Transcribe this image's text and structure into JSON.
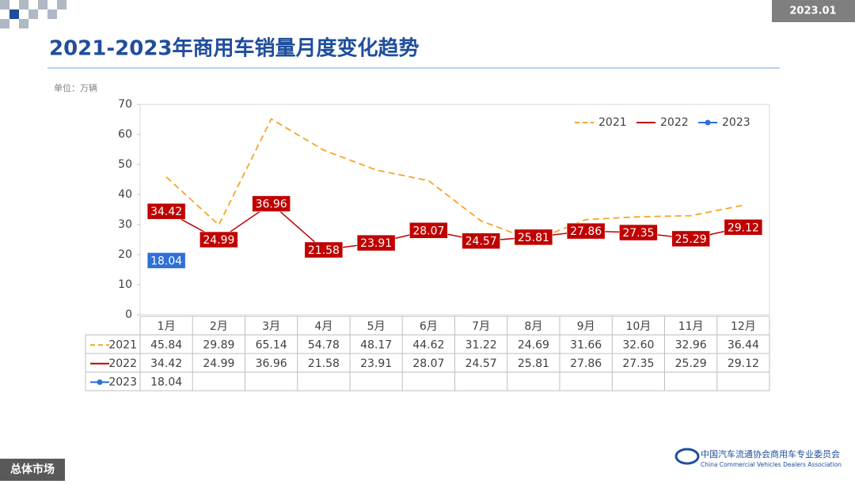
{
  "header": {
    "date": "2023.01",
    "section": "总体市场",
    "org_cn": "中国汽车流通协会商用车专业委员会",
    "org_en": "China Commercial Vehicles Dealers Association"
  },
  "chart_data": {
    "type": "line",
    "title": "2021-2023年商用车销量月度变化趋势",
    "unit_label": "单位：万辆",
    "categories": [
      "1月",
      "2月",
      "3月",
      "4月",
      "5月",
      "6月",
      "7月",
      "8月",
      "9月",
      "10月",
      "11月",
      "12月"
    ],
    "series": [
      {
        "name": "2021",
        "color": "#f5a623",
        "dashed": true,
        "values": [
          45.84,
          29.89,
          65.14,
          54.78,
          48.17,
          44.62,
          31.22,
          24.69,
          31.66,
          32.6,
          32.96,
          36.44
        ],
        "value_labels": [
          "45.84",
          "29.89",
          "65.14",
          "54.78",
          "48.17",
          "44.62",
          "31.22",
          "24.69",
          "31.66",
          "32.60",
          "32.96",
          "36.44"
        ]
      },
      {
        "name": "2022",
        "color": "#c00000",
        "values": [
          34.42,
          24.99,
          36.96,
          21.58,
          23.91,
          28.07,
          24.57,
          25.81,
          27.86,
          27.35,
          25.29,
          29.12
        ],
        "value_labels": [
          "34.42",
          "24.99",
          "36.96",
          "21.58",
          "23.91",
          "28.07",
          "24.57",
          "25.81",
          "27.86",
          "27.35",
          "25.29",
          "29.12"
        ]
      },
      {
        "name": "2023",
        "color": "#2f6fd6",
        "marker": true,
        "values": [
          18.04,
          null,
          null,
          null,
          null,
          null,
          null,
          null,
          null,
          null,
          null,
          null
        ],
        "value_labels": [
          "18.04",
          null,
          null,
          null,
          null,
          null,
          null,
          null,
          null,
          null,
          null,
          null
        ]
      }
    ],
    "ylim": [
      0,
      70
    ],
    "yticks": [
      0,
      10,
      20,
      30,
      40,
      50,
      60,
      70
    ],
    "legend": "upper right"
  }
}
